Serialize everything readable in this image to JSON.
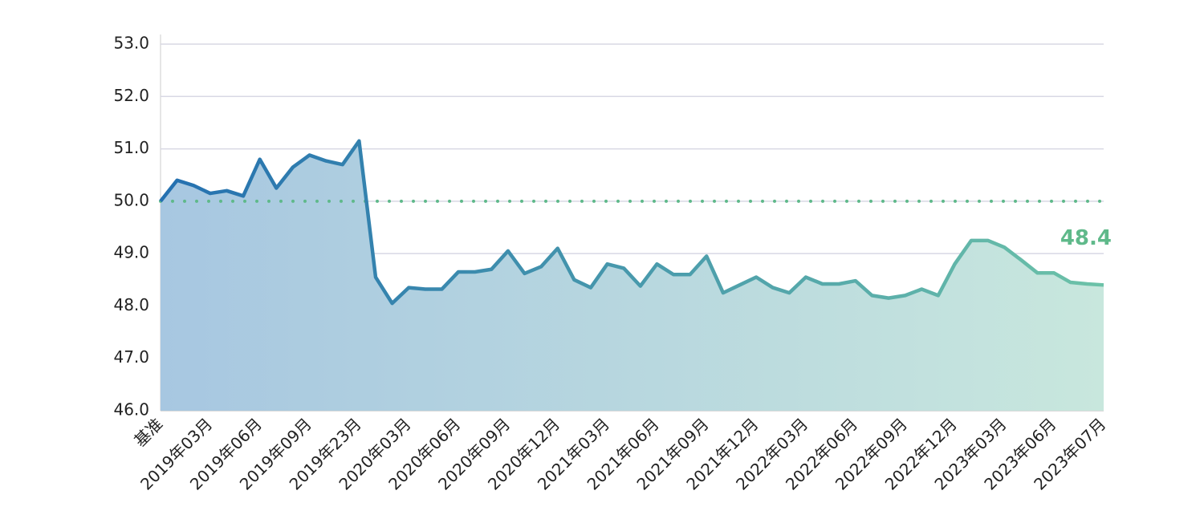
{
  "chart_data": {
    "type": "area",
    "categories": [
      "基准",
      null,
      null,
      "2019年03月",
      null,
      null,
      "2019年06月",
      null,
      null,
      "2019年09月",
      null,
      null,
      "2019年23月",
      null,
      null,
      "2020年03月",
      null,
      null,
      "2020年06月",
      null,
      null,
      "2020年09月",
      null,
      null,
      "2020年12月",
      null,
      null,
      "2021年03月",
      null,
      null,
      "2021年06月",
      null,
      null,
      "2021年09月",
      null,
      null,
      "2021年12月",
      null,
      null,
      "2022年03月",
      null,
      null,
      "2022年06月",
      null,
      null,
      "2022年09月",
      null,
      null,
      "2022年12月",
      null,
      null,
      "2023年03月",
      null,
      null,
      "2023年06月",
      null,
      null,
      "2023年07月"
    ],
    "values": [
      50.0,
      50.4,
      50.3,
      50.15,
      50.2,
      50.1,
      50.8,
      50.25,
      50.65,
      50.88,
      50.77,
      50.7,
      51.15,
      48.55,
      48.05,
      48.35,
      48.32,
      48.32,
      48.65,
      48.65,
      48.7,
      49.05,
      48.62,
      48.75,
      49.1,
      48.5,
      48.35,
      48.8,
      48.72,
      48.38,
      48.8,
      48.6,
      48.6,
      48.95,
      48.25,
      48.4,
      48.55,
      48.35,
      48.25,
      48.55,
      48.42,
      48.42,
      48.48,
      48.2,
      48.15,
      48.2,
      48.32,
      48.2,
      48.8,
      49.25,
      49.25,
      49.12,
      48.88,
      48.63,
      48.63,
      48.45,
      48.42,
      48.4
    ],
    "ylim": [
      46,
      53
    ],
    "yticks": [
      {
        "value": 46,
        "label": "46.0"
      },
      {
        "value": 47,
        "label": "47.0"
      },
      {
        "value": 48,
        "label": "48.0"
      },
      {
        "value": 49,
        "label": "49.0"
      },
      {
        "value": 50,
        "label": "50.0"
      },
      {
        "value": 51,
        "label": "51.0"
      },
      {
        "value": 52,
        "label": "52.0"
      },
      {
        "value": 53,
        "label": "53.0"
      }
    ],
    "grid": true,
    "reference_line": 50,
    "reference_color": "#5fb98a",
    "line_colors": [
      "#2470b0",
      "#6cc2a8"
    ],
    "fill_colors": [
      "#a7c7e1",
      "#c8e7dd"
    ],
    "last_label_color": "#5fb98a"
  }
}
